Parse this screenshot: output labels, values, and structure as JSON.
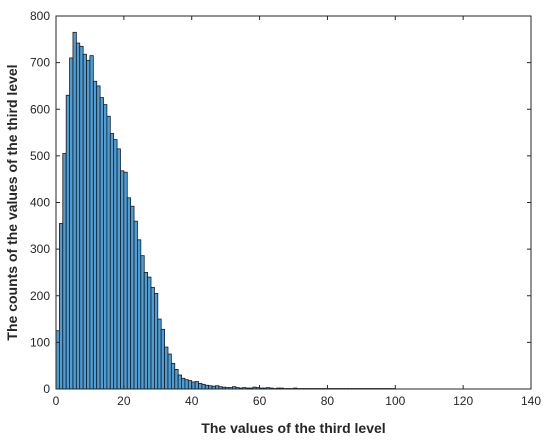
{
  "chart_data": {
    "type": "bar",
    "title": "",
    "xlabel": "The values of the third level",
    "ylabel": "The counts of the values of the third level",
    "xlim": [
      0,
      140
    ],
    "ylim": [
      0,
      800
    ],
    "x_ticks": [
      "0",
      "20",
      "40",
      "60",
      "80",
      "100",
      "120",
      "140"
    ],
    "y_ticks": [
      "0",
      "100",
      "200",
      "300",
      "400",
      "500",
      "600",
      "700",
      "800"
    ],
    "grid": false,
    "legend": "none",
    "bar_fill": "#4d9dd6",
    "bar_edge": "#1a1a1a",
    "bin_width": 1,
    "bins_start": [
      0,
      1,
      2,
      3,
      4,
      5,
      6,
      7,
      8,
      9,
      10,
      11,
      12,
      13,
      14,
      15,
      16,
      17,
      18,
      19,
      20,
      21,
      22,
      23,
      24,
      25,
      26,
      27,
      28,
      29,
      30,
      31,
      32,
      33,
      34,
      35,
      36,
      37,
      38,
      39,
      40,
      41,
      42,
      43,
      44,
      45,
      46,
      47,
      48,
      49,
      50,
      51,
      52,
      53,
      54,
      55,
      56,
      57,
      58,
      59,
      60,
      61,
      62,
      63,
      64,
      65,
      66,
      67,
      68,
      69,
      70,
      71,
      72,
      73,
      74,
      75,
      76,
      77,
      78,
      79,
      80,
      81,
      82,
      83,
      84,
      85,
      86,
      87,
      88,
      89,
      90,
      91,
      92,
      93,
      94,
      95,
      96,
      97,
      98,
      99
    ],
    "counts": [
      125,
      355,
      505,
      630,
      710,
      765,
      742,
      735,
      718,
      705,
      715,
      660,
      650,
      625,
      610,
      585,
      548,
      535,
      515,
      468,
      465,
      410,
      392,
      360,
      320,
      286,
      250,
      240,
      218,
      205,
      150,
      128,
      90,
      75,
      55,
      42,
      30,
      23,
      20,
      18,
      15,
      16,
      12,
      10,
      8,
      7,
      6,
      7,
      5,
      4,
      3,
      3,
      5,
      3,
      2,
      3,
      2,
      2,
      4,
      3,
      2,
      2,
      3,
      2,
      1,
      2,
      2,
      1,
      1,
      1,
      2,
      1,
      1,
      1,
      1,
      1,
      1,
      1,
      1,
      1,
      1,
      1,
      1,
      1,
      1,
      1,
      1,
      1,
      1,
      1,
      1,
      1,
      1,
      1,
      1,
      1,
      1,
      1,
      1,
      1
    ]
  }
}
